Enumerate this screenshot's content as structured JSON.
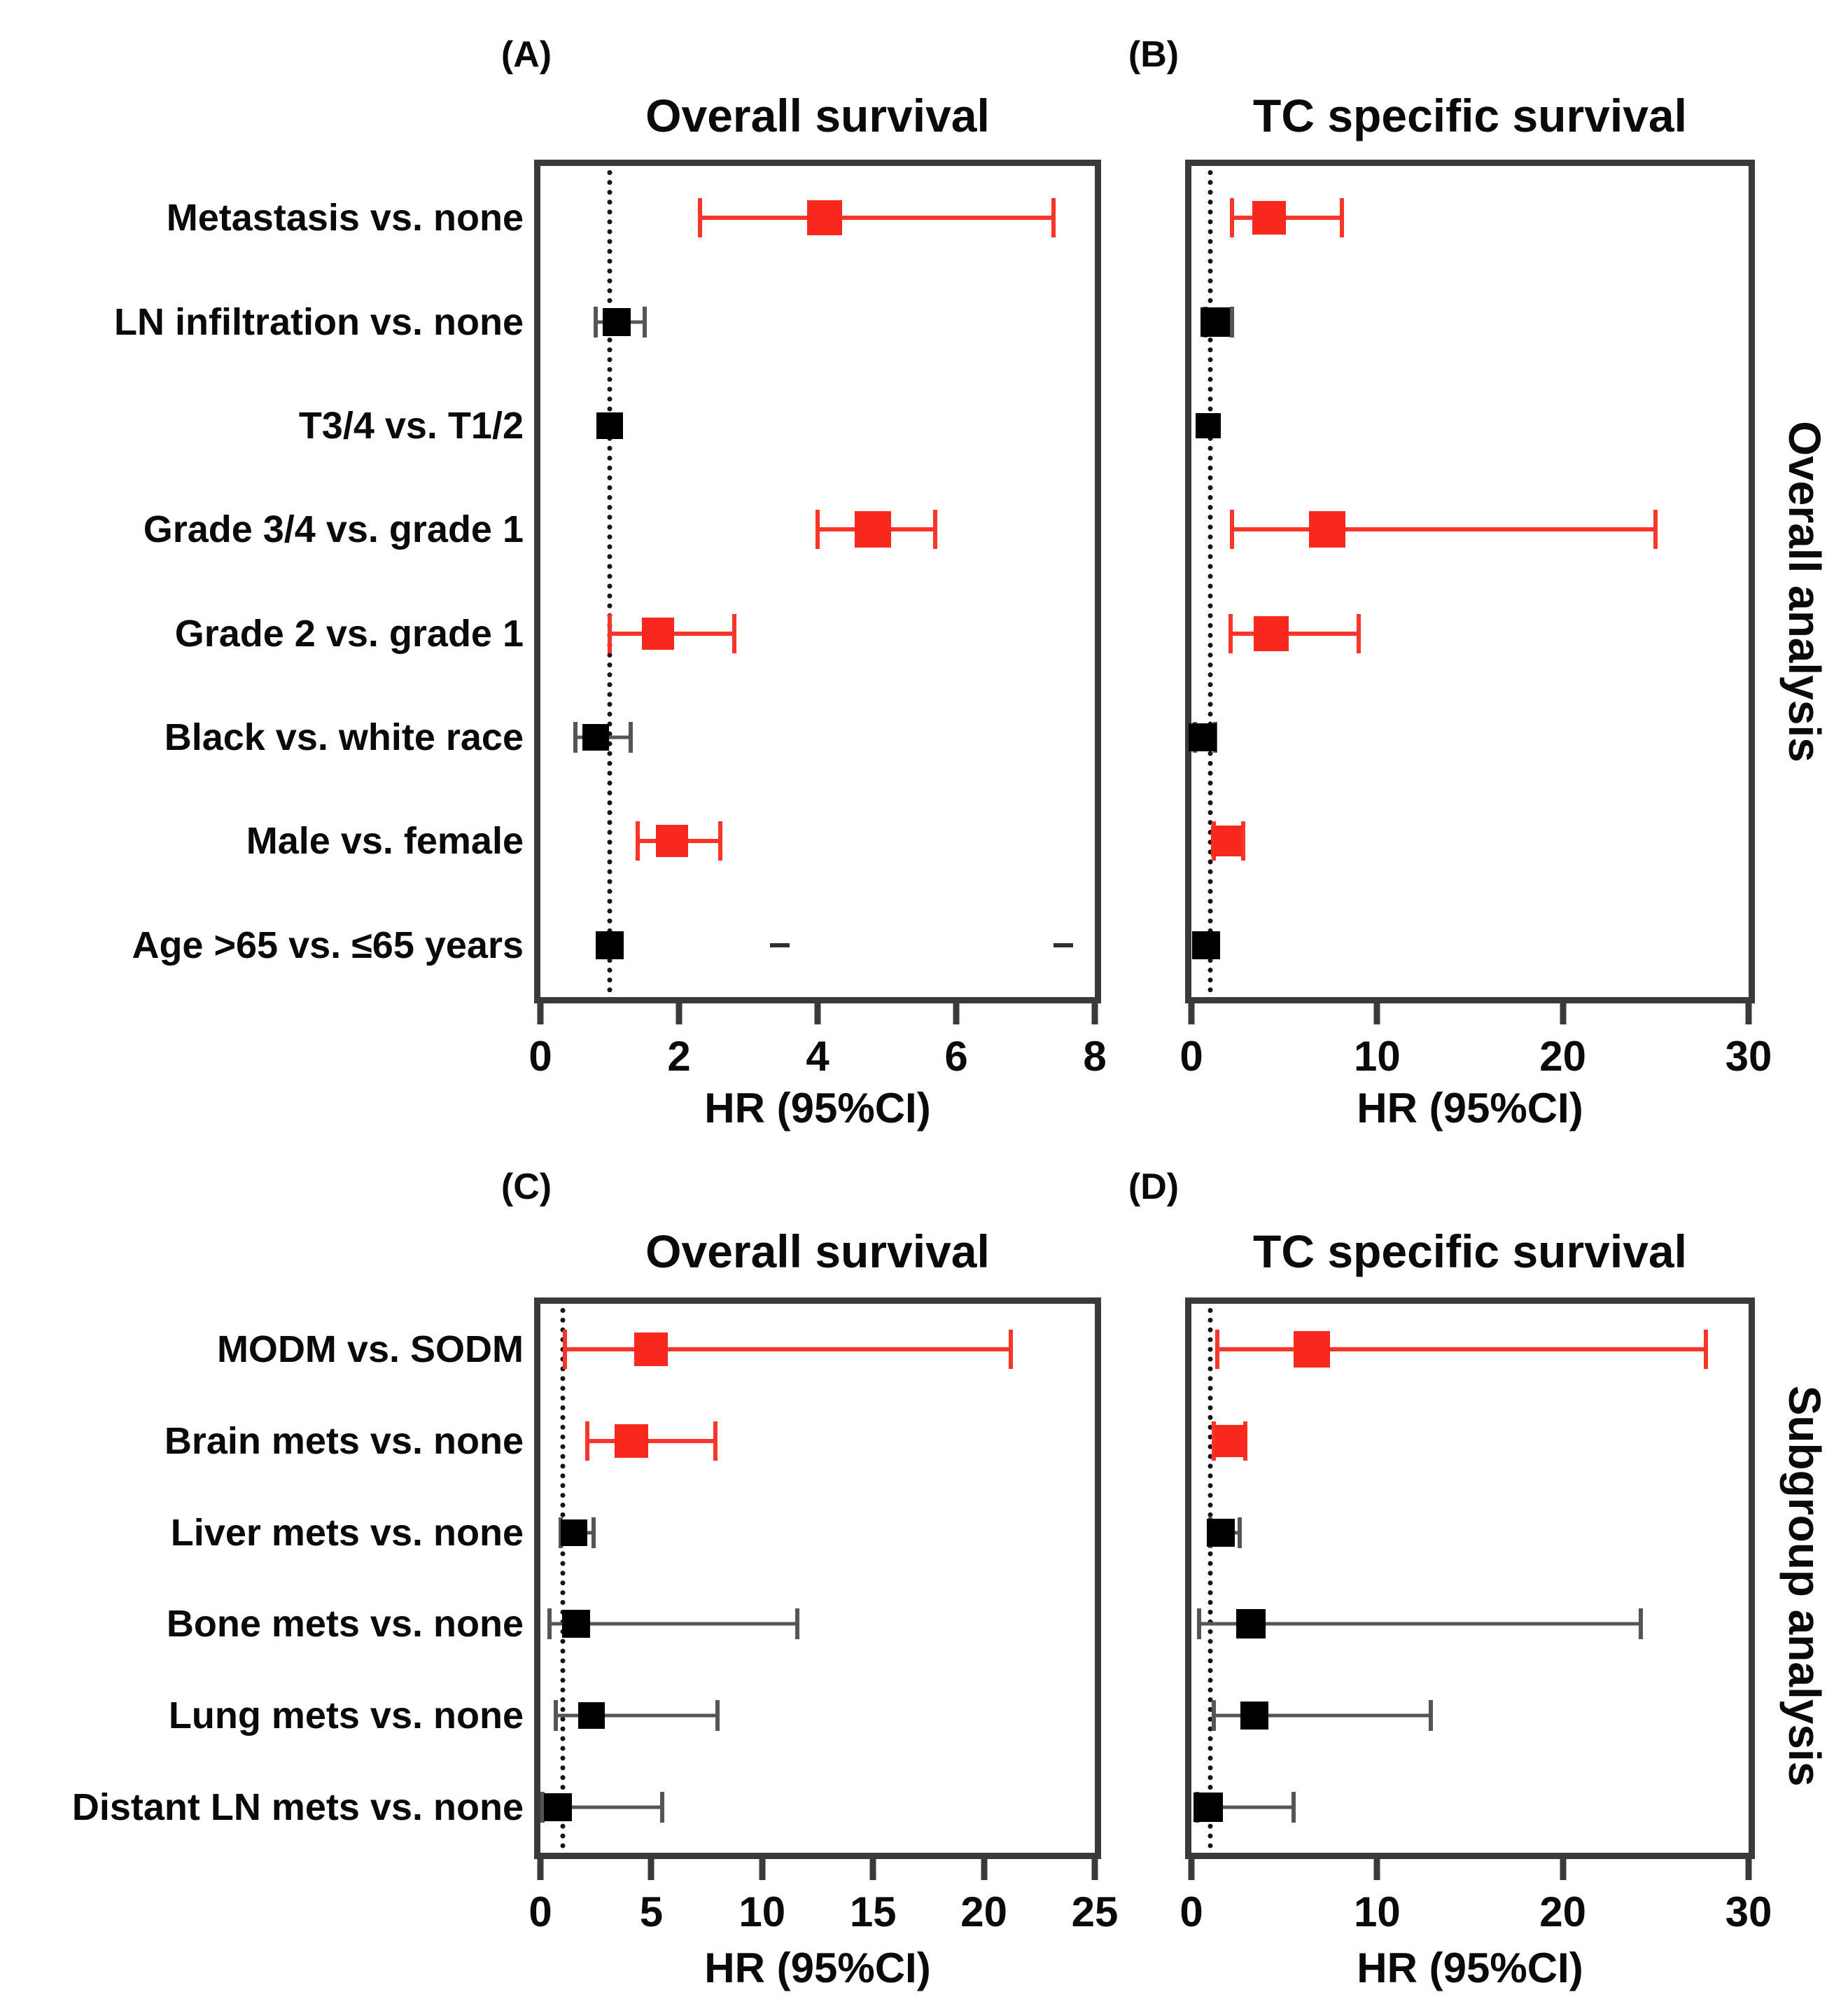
{
  "colors": {
    "significant": "#f8281e",
    "significant_line": "#f8352b",
    "nonsignificant": "#000000",
    "nonsignificant_line": "#555555",
    "frame": "#3a3a3a",
    "reference_line": "#161616",
    "text": "#0a0a0a",
    "background": "#ffffff"
  },
  "side_labels": {
    "top": "Overall analysis",
    "bottom": "Subgroup analysis"
  },
  "chart_data": [
    {
      "id": "A",
      "panel_letter": "(A)",
      "type": "scatter",
      "variant": "forest-plot",
      "title": "Overall survival",
      "xlabel": "HR (95%CI)",
      "group_label": "Overall analysis",
      "xlim": [
        0,
        8
      ],
      "xticks": [
        0,
        2,
        4,
        6,
        8
      ],
      "reference_line_x": 1,
      "grid": false,
      "rows": [
        {
          "label": "Metastasis vs. none",
          "hr": 4.1,
          "ci_low": 2.3,
          "ci_high": 7.4,
          "significant": true,
          "marker_px": 50
        },
        {
          "label": "LN infiltration vs. none",
          "hr": 1.1,
          "ci_low": 0.8,
          "ci_high": 1.5,
          "significant": false,
          "marker_px": 40
        },
        {
          "label": "T3/4 vs. T1/2",
          "hr": 1.0,
          "ci_low": null,
          "ci_high": null,
          "significant": false,
          "marker_px": 38
        },
        {
          "label": "Grade 3/4 vs. grade 1",
          "hr": 4.8,
          "ci_low": 4.0,
          "ci_high": 5.7,
          "significant": true,
          "marker_px": 52
        },
        {
          "label": "Grade 2 vs. grade 1",
          "hr": 1.7,
          "ci_low": 1.0,
          "ci_high": 2.8,
          "significant": true,
          "marker_px": 46
        },
        {
          "label": "Black vs. white race",
          "hr": 0.8,
          "ci_low": 0.5,
          "ci_high": 1.3,
          "significant": false,
          "marker_px": 38
        },
        {
          "label": "Male vs. female",
          "hr": 1.9,
          "ci_low": 1.4,
          "ci_high": 2.6,
          "significant": true,
          "marker_px": 46
        },
        {
          "label": "Age >65 vs. ≤65 years",
          "hr": 1.0,
          "ci_low": null,
          "ci_high": null,
          "significant": false,
          "marker_px": 40
        }
      ],
      "artifact_dashes": {
        "row_index": 7,
        "x_values": [
          3.45,
          7.55
        ]
      }
    },
    {
      "id": "B",
      "panel_letter": "(B)",
      "type": "scatter",
      "variant": "forest-plot",
      "title": "TC specific survival",
      "xlabel": "HR (95%CI)",
      "group_label": "Overall analysis",
      "xlim": [
        0,
        30
      ],
      "xticks": [
        0,
        10,
        20,
        30
      ],
      "reference_line_x": 1,
      "grid": false,
      "rows": [
        {
          "label": "Metastasis vs. none",
          "hr": 4.2,
          "ci_low": 2.2,
          "ci_high": 8.1,
          "significant": true,
          "marker_px": 48
        },
        {
          "label": "LN infiltration vs. none",
          "hr": 1.3,
          "ci_low": 0.75,
          "ci_high": 2.2,
          "significant": false,
          "marker_px": 42
        },
        {
          "label": "T3/4 vs. T1/2",
          "hr": 0.9,
          "ci_low": null,
          "ci_high": null,
          "significant": false,
          "marker_px": 36
        },
        {
          "label": "Grade 3/4 vs. grade 1",
          "hr": 7.3,
          "ci_low": 2.2,
          "ci_high": 25.0,
          "significant": true,
          "marker_px": 52
        },
        {
          "label": "Grade 2 vs. grade 1",
          "hr": 4.3,
          "ci_low": 2.1,
          "ci_high": 9.0,
          "significant": true,
          "marker_px": 50
        },
        {
          "label": "Black vs. white race",
          "hr": 0.6,
          "ci_low": 0.2,
          "ci_high": 1.3,
          "significant": false,
          "marker_px": 40
        },
        {
          "label": "Male vs. female",
          "hr": 1.9,
          "ci_low": 1.2,
          "ci_high": 2.8,
          "significant": true,
          "marker_px": 44
        },
        {
          "label": "Age >65 vs. ≤65 years",
          "hr": 0.8,
          "ci_low": null,
          "ci_high": null,
          "significant": false,
          "marker_px": 40
        }
      ]
    },
    {
      "id": "C",
      "panel_letter": "(C)",
      "type": "scatter",
      "variant": "forest-plot",
      "title": "Overall survival",
      "xlabel": "HR (95%CI)",
      "group_label": "Subgroup analysis",
      "xlim": [
        0,
        25
      ],
      "xticks": [
        0,
        5,
        10,
        15,
        20,
        25
      ],
      "reference_line_x": 1,
      "grid": false,
      "rows": [
        {
          "label": "MODM vs. SODM",
          "hr": 5.0,
          "ci_low": 1.1,
          "ci_high": 21.2,
          "significant": true,
          "marker_px": 48
        },
        {
          "label": "Brain mets vs. none",
          "hr": 4.1,
          "ci_low": 2.1,
          "ci_high": 7.9,
          "significant": true,
          "marker_px": 48
        },
        {
          "label": "Liver mets vs. none",
          "hr": 1.5,
          "ci_low": 0.9,
          "ci_high": 2.4,
          "significant": false,
          "marker_px": 38
        },
        {
          "label": "Bone mets vs. none",
          "hr": 1.6,
          "ci_low": 0.4,
          "ci_high": 11.6,
          "significant": false,
          "marker_px": 40
        },
        {
          "label": "Lung mets vs. none",
          "hr": 2.3,
          "ci_low": 0.7,
          "ci_high": 8.0,
          "significant": false,
          "marker_px": 38
        },
        {
          "label": "Distant LN mets vs. none",
          "hr": 0.8,
          "ci_low": 0.1,
          "ci_high": 5.5,
          "significant": false,
          "marker_px": 40
        }
      ]
    },
    {
      "id": "D",
      "panel_letter": "(D)",
      "type": "scatter",
      "variant": "forest-plot",
      "title": "TC specific survival",
      "xlabel": "HR (95%CI)",
      "group_label": "Subgroup analysis",
      "xlim": [
        0,
        30
      ],
      "xticks": [
        0,
        10,
        20,
        30
      ],
      "reference_line_x": 1,
      "grid": false,
      "rows": [
        {
          "label": "MODM vs. SODM",
          "hr": 6.5,
          "ci_low": 1.4,
          "ci_high": 27.7,
          "significant": true,
          "marker_px": 52
        },
        {
          "label": "Brain mets vs. none",
          "hr": 2.1,
          "ci_low": 1.2,
          "ci_high": 2.9,
          "significant": true,
          "marker_px": 46
        },
        {
          "label": "Liver mets vs. none",
          "hr": 1.6,
          "ci_low": 1.0,
          "ci_high": 2.6,
          "significant": false,
          "marker_px": 40
        },
        {
          "label": "Bone mets vs. none",
          "hr": 3.2,
          "ci_low": 0.4,
          "ci_high": 24.2,
          "significant": false,
          "marker_px": 42
        },
        {
          "label": "Lung mets vs. none",
          "hr": 3.4,
          "ci_low": 1.2,
          "ci_high": 12.9,
          "significant": false,
          "marker_px": 40
        },
        {
          "label": "Distant LN mets vs. none",
          "hr": 0.9,
          "ci_low": 0.3,
          "ci_high": 5.5,
          "significant": false,
          "marker_px": 42
        }
      ]
    }
  ]
}
